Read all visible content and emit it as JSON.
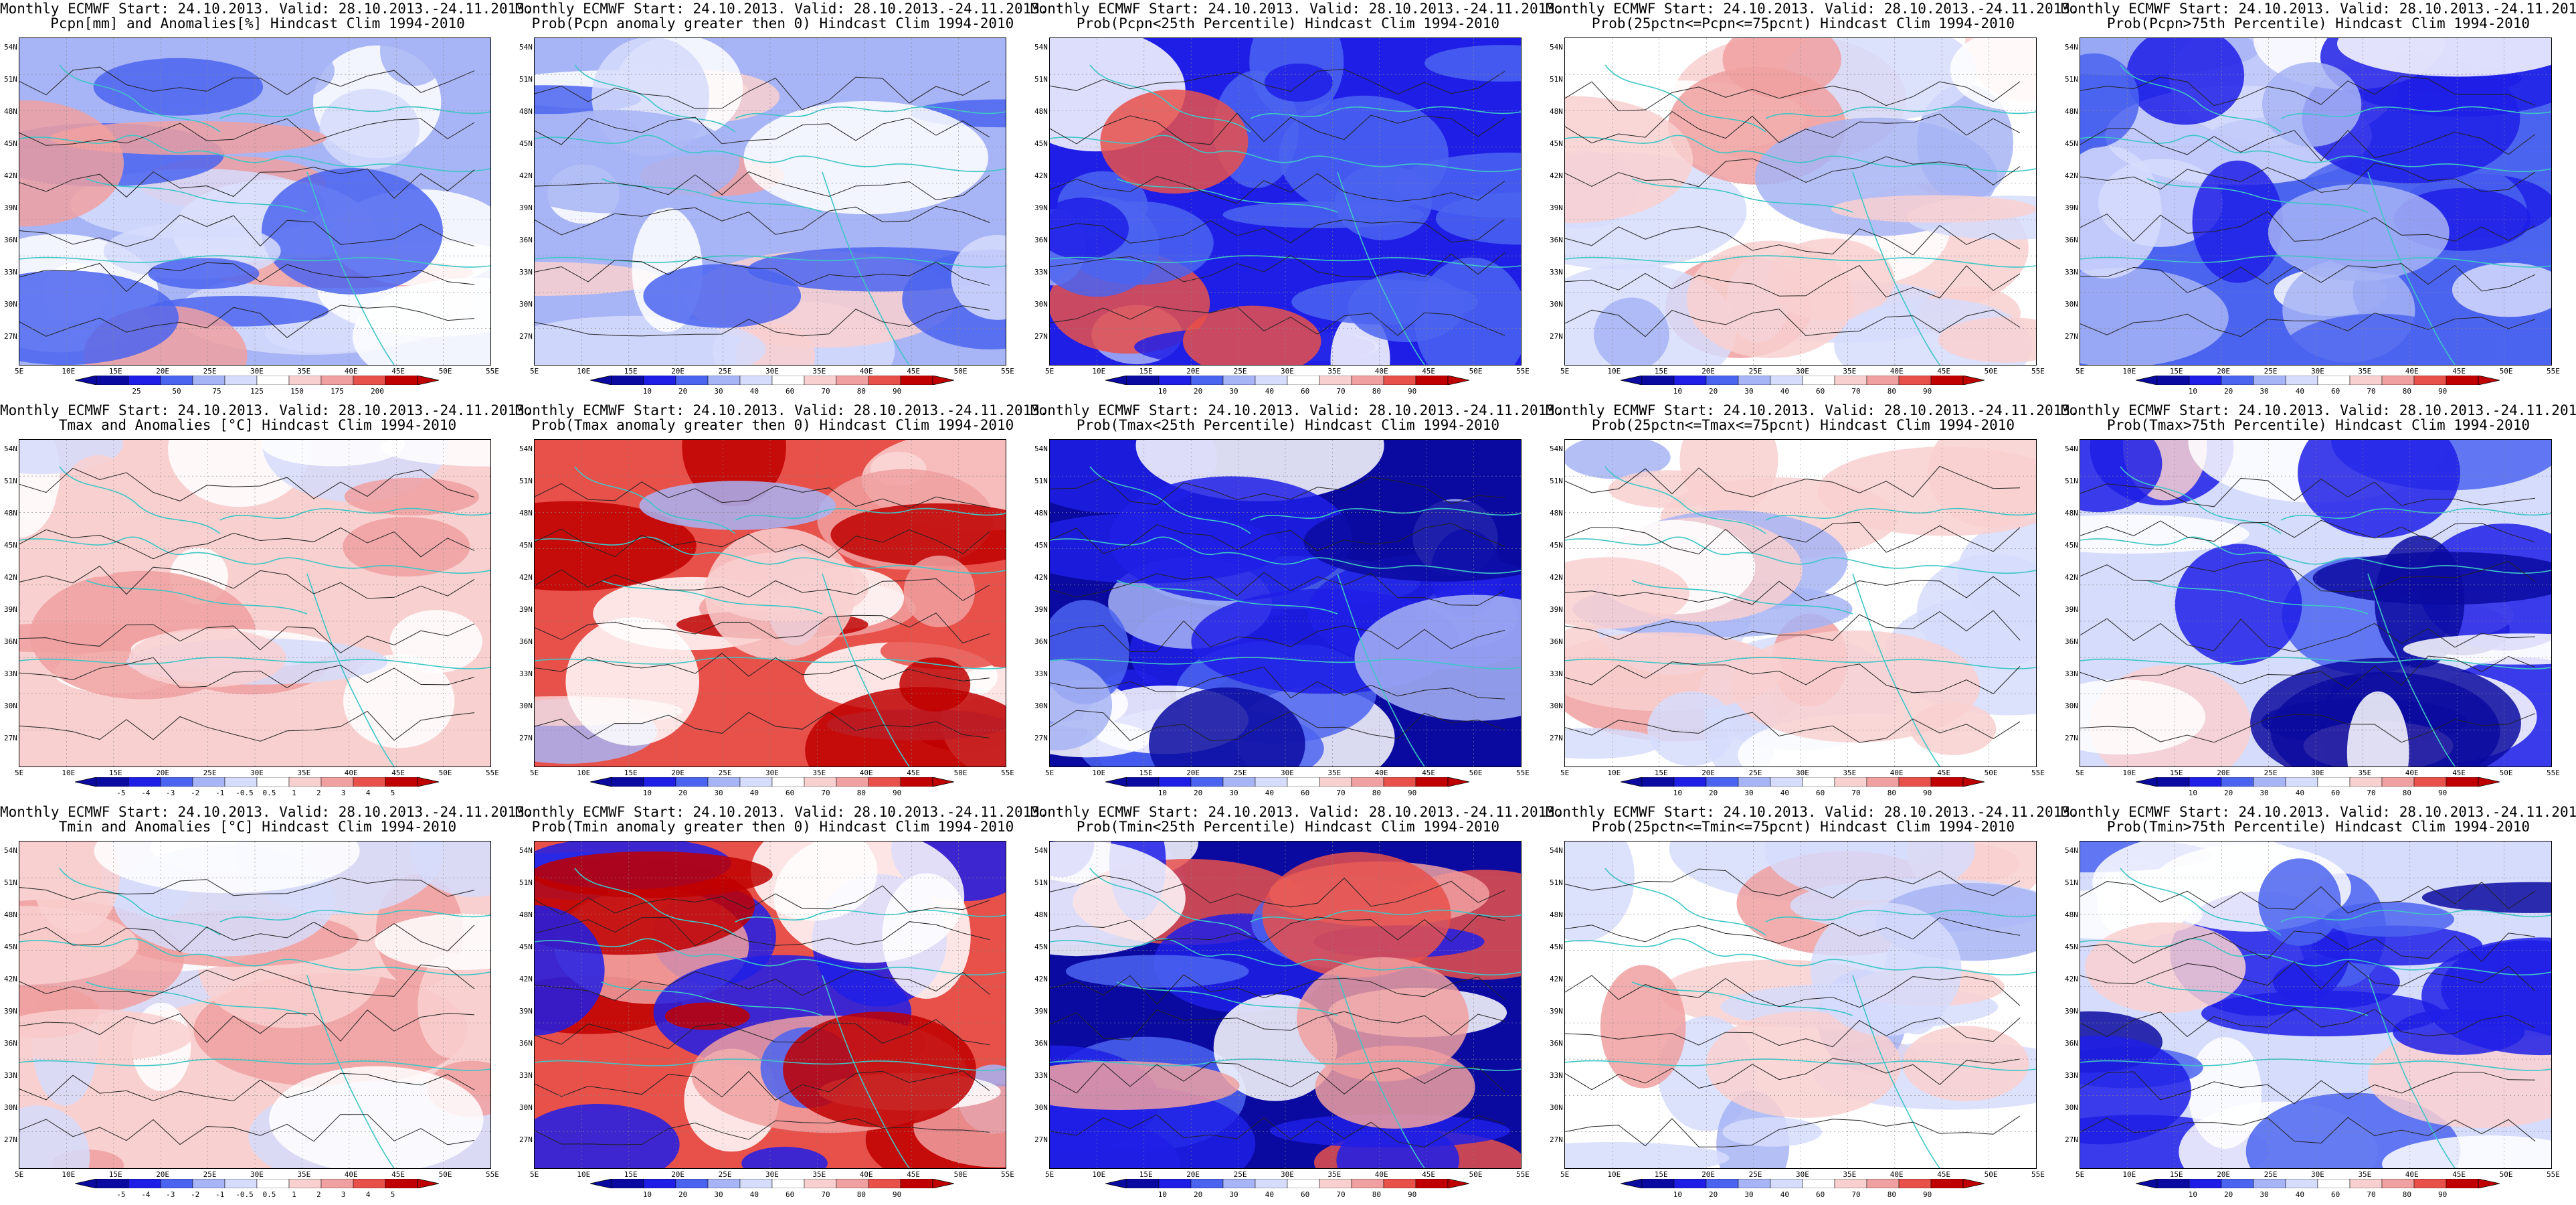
{
  "lat_labels": [
    "54N",
    "51N",
    "48N",
    "45N",
    "42N",
    "39N",
    "36N",
    "33N",
    "30N",
    "27N"
  ],
  "lon_labels": [
    "5E",
    "10E",
    "15E",
    "20E",
    "25E",
    "30E",
    "35E",
    "40E",
    "45E",
    "50E",
    "55E"
  ],
  "title_prefix": "Monthly ECMWF Start: 24.10.2013. Valid: 28.10.2013.-24.11.2013.",
  "colorbars": {
    "pcpn_anom": [
      "25",
      "50",
      "75",
      "125",
      "150",
      "175",
      "200"
    ],
    "prob": [
      "10",
      "20",
      "30",
      "40",
      "60",
      "70",
      "80",
      "90"
    ],
    "t_anom": [
      "-5",
      "-4",
      "-3",
      "-2",
      "-1",
      "-0.5",
      "0.5",
      "1",
      "2",
      "3",
      "4",
      "5"
    ]
  },
  "palette": {
    "blue3": "#1e1ee6",
    "blue2": "#4b64f0",
    "blue1": "#a7b4f5",
    "blue0": "#d6dcfb",
    "white": "#ffffff",
    "red0": "#f9d0d0",
    "red1": "#f0a0a0",
    "red2": "#e8504a",
    "red3": "#c00000",
    "deepblue": "#0a0aa0",
    "border": "#3ec6c6"
  },
  "panels": [
    {
      "title": "Pcpn[mm] and Anomalies[%] Hindcast Clim 1994-2010",
      "cbar": "pcpn_anom",
      "scheme": "mixedbr"
    },
    {
      "title": "Prob(Pcpn anomaly greater then 0) Hindcast Clim 1994-2010",
      "cbar": "prob",
      "scheme": "mixedbr"
    },
    {
      "title": "Prob(Pcpn<25th Percentile) Hindcast Clim 1994-2010",
      "cbar": "prob",
      "scheme": "bluered"
    },
    {
      "title": "Prob(25pctn<=Pcpn<=75pcnt) Hindcast Clim 1994-2010",
      "cbar": "prob",
      "scheme": "mixed"
    },
    {
      "title": "Prob(Pcpn>75th Percentile) Hindcast Clim 1994-2010",
      "cbar": "prob",
      "scheme": "blue"
    },
    {
      "title": "Tmax and Anomalies [°C] Hindcast Clim 1994-2010",
      "cbar": "t_anom",
      "scheme": "lightred"
    },
    {
      "title": "Prob(Tmax anomaly greater then 0) Hindcast Clim 1994-2010",
      "cbar": "prob",
      "scheme": "red"
    },
    {
      "title": "Prob(Tmax<25th Percentile) Hindcast Clim 1994-2010",
      "cbar": "prob",
      "scheme": "deepblue"
    },
    {
      "title": "Prob(25pctn<=Tmax<=75pcnt) Hindcast Clim 1994-2010",
      "cbar": "prob",
      "scheme": "mixed"
    },
    {
      "title": "Prob(Tmax>75th Percentile) Hindcast Clim 1994-2010",
      "cbar": "prob",
      "scheme": "bluelow"
    },
    {
      "title": "Tmin and Anomalies [°C] Hindcast Clim 1994-2010",
      "cbar": "t_anom",
      "scheme": "lightred"
    },
    {
      "title": "Prob(Tmin anomaly greater then 0) Hindcast Clim 1994-2010",
      "cbar": "prob",
      "scheme": "redblue"
    },
    {
      "title": "Prob(Tmin<25th Percentile) Hindcast Clim 1994-2010",
      "cbar": "prob",
      "scheme": "deepbluered"
    },
    {
      "title": "Prob(25pctn<=Tmin<=75pcnt) Hindcast Clim 1994-2010",
      "cbar": "prob",
      "scheme": "mixed"
    },
    {
      "title": "Prob(Tmin>75th Percentile) Hindcast Clim 1994-2010",
      "cbar": "prob",
      "scheme": "bluelow"
    }
  ]
}
